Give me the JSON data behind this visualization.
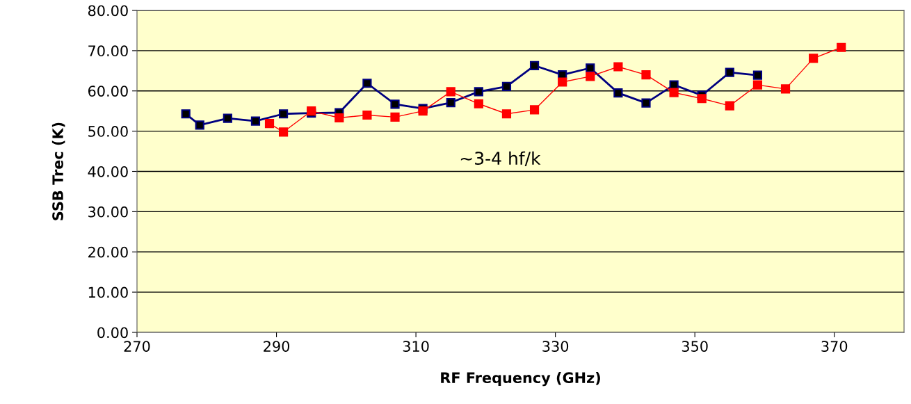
{
  "chart_data": {
    "type": "line",
    "xlabel": "RF Frequency (GHz)",
    "ylabel": "SSB Trec (K)",
    "annotations": [
      "~3-4 hf/k"
    ],
    "xlim": [
      270,
      380
    ],
    "xticks": [
      270,
      290,
      310,
      330,
      350,
      370
    ],
    "ylim": [
      0,
      80
    ],
    "yticks": [
      {
        "value": 0,
        "label": "0.00"
      },
      {
        "value": 10,
        "label": "10.00"
      },
      {
        "value": 20,
        "label": "20.00"
      },
      {
        "value": 30,
        "label": "30.00"
      },
      {
        "value": 40,
        "label": "40.00"
      },
      {
        "value": 50,
        "label": "50.00"
      },
      {
        "value": 60,
        "label": "60.00"
      },
      {
        "value": 70,
        "label": "70.00"
      },
      {
        "value": 80,
        "label": "80.00"
      }
    ],
    "grid": "y",
    "marker": "square",
    "legend": false,
    "series": [
      {
        "color": "#000080",
        "x": [
          277,
          279,
          283,
          287,
          291,
          295,
          299,
          303,
          307,
          311,
          315,
          319,
          323,
          327,
          331,
          335,
          339,
          343,
          347,
          351,
          355,
          359
        ],
        "values": [
          54.3,
          51.5,
          53.2,
          52.5,
          54.3,
          54.5,
          54.6,
          61.9,
          56.7,
          55.6,
          57.1,
          59.8,
          61.1,
          66.3,
          64.0,
          65.7,
          59.5,
          57.0,
          61.5,
          58.9,
          64.6,
          63.9
        ]
      },
      {
        "color": "#ff0000",
        "x": [
          289,
          291,
          295,
          299,
          303,
          307,
          311,
          315,
          319,
          323,
          327,
          331,
          335,
          339,
          343,
          347,
          351,
          355,
          359,
          363,
          367,
          371
        ],
        "values": [
          51.9,
          49.8,
          55.0,
          53.3,
          54.0,
          53.5,
          55.0,
          59.8,
          56.8,
          54.3,
          55.3,
          62.2,
          63.6,
          66.0,
          64.0,
          59.6,
          58.1,
          56.3,
          61.5,
          60.5,
          68.1,
          70.8
        ]
      }
    ]
  }
}
